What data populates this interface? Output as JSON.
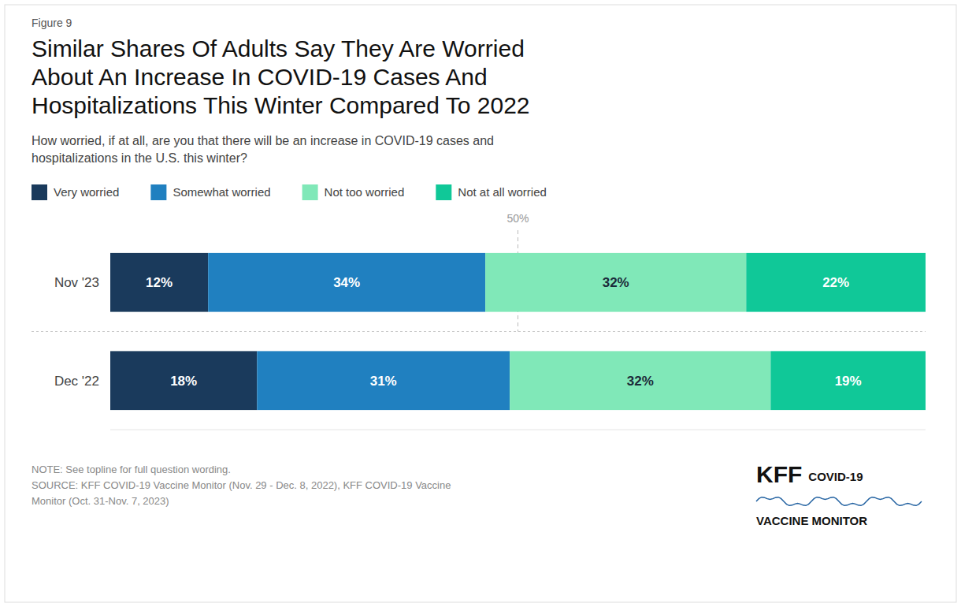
{
  "chart_data": {
    "type": "bar",
    "orientation": "horizontal",
    "stacked": true,
    "figure_label": "Figure 9",
    "title": "Similar Shares Of Adults Say They Are Worried\nAbout An Increase In COVID-19 Cases And\nHospitalizations This Winter Compared To 2022",
    "subtitle": "How worried, if at all, are you that there will be an increase in COVID-19 cases and\nhospitalizations in the U.S. this winter?",
    "categories": [
      "Nov '23",
      "Dec '22"
    ],
    "series": [
      {
        "name": "Very worried",
        "color": "#1a3a5c",
        "values": [
          12,
          18
        ],
        "value_labels": [
          "12%",
          "18%"
        ]
      },
      {
        "name": "Somewhat worried",
        "color": "#2080c0",
        "values": [
          34,
          31
        ],
        "value_labels": [
          "34%",
          "31%"
        ]
      },
      {
        "name": "Not too worried",
        "color": "#80e8b8",
        "values": [
          32,
          32
        ],
        "value_labels": [
          "32%",
          "32%"
        ]
      },
      {
        "name": "Not at all worried",
        "color": "#10c898",
        "values": [
          22,
          19
        ],
        "value_labels": [
          "22%",
          "19%"
        ]
      }
    ],
    "xlim": [
      0,
      100
    ],
    "tick_labels": "y",
    "grid": false,
    "legend": "top",
    "data_labels": true,
    "annotations": [
      {
        "x": 50,
        "text": "50%"
      }
    ],
    "note": "NOTE: See topline for full question wording.\nSOURCE: KFF COVID-19 Vaccine Monitor (Nov. 29 - Dec. 8, 2022), KFF COVID-19 Vaccine\nMonitor (Oct. 31-Nov. 7, 2023)",
    "logo": [
      "KFF",
      "COVID-19",
      "VACCINE MONITOR"
    ]
  }
}
